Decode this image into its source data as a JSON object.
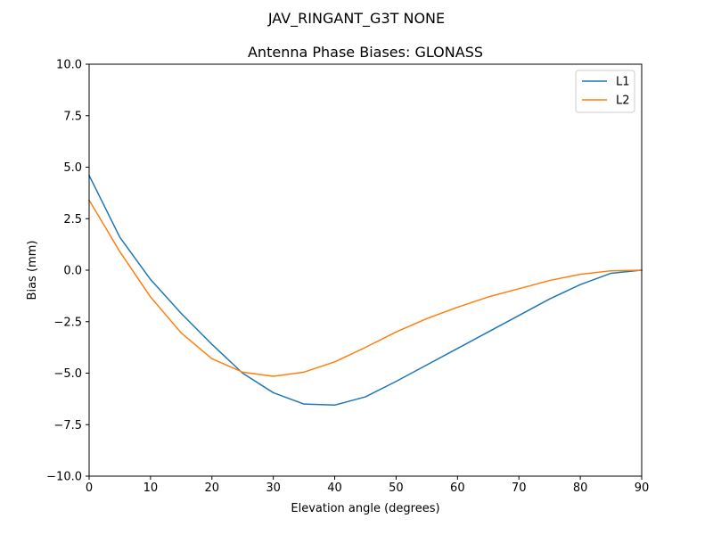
{
  "figure": {
    "suptitle": "JAV_RINGANT_G3T NONE"
  },
  "chart_data": {
    "type": "line",
    "title": "Antenna Phase Biases: GLONASS",
    "xlabel": "Elevation angle (degrees)",
    "ylabel": "Bias (mm)",
    "xlim": [
      0,
      90
    ],
    "ylim": [
      -10,
      10
    ],
    "x_ticks": [
      0,
      10,
      20,
      30,
      40,
      50,
      60,
      70,
      80,
      90
    ],
    "x_tick_labels": [
      "0",
      "10",
      "20",
      "30",
      "40",
      "50",
      "60",
      "70",
      "80",
      "90"
    ],
    "y_ticks": [
      -10,
      -7.5,
      -5,
      -2.5,
      0,
      2.5,
      5,
      7.5,
      10
    ],
    "y_tick_labels": [
      "−10.0",
      "−7.5",
      "−5.0",
      "−2.5",
      "0.0",
      "2.5",
      "5.0",
      "7.5",
      "10.0"
    ],
    "grid": false,
    "legend_position": "top-right",
    "x": [
      0,
      5,
      10,
      15,
      20,
      25,
      30,
      35,
      40,
      45,
      50,
      55,
      60,
      65,
      70,
      75,
      80,
      85,
      90
    ],
    "series": [
      {
        "name": "L1",
        "color": "#1f77b4",
        "values": [
          4.6,
          1.6,
          -0.45,
          -2.1,
          -3.6,
          -5.0,
          -5.95,
          -6.5,
          -6.55,
          -6.15,
          -5.4,
          -4.6,
          -3.8,
          -3.0,
          -2.2,
          -1.4,
          -0.7,
          -0.15,
          0.0
        ]
      },
      {
        "name": "L2",
        "color": "#ff7f0e",
        "values": [
          3.4,
          0.9,
          -1.3,
          -3.05,
          -4.3,
          -4.95,
          -5.15,
          -4.95,
          -4.45,
          -3.75,
          -3.0,
          -2.35,
          -1.8,
          -1.3,
          -0.9,
          -0.5,
          -0.2,
          -0.03,
          0.0
        ]
      }
    ]
  }
}
